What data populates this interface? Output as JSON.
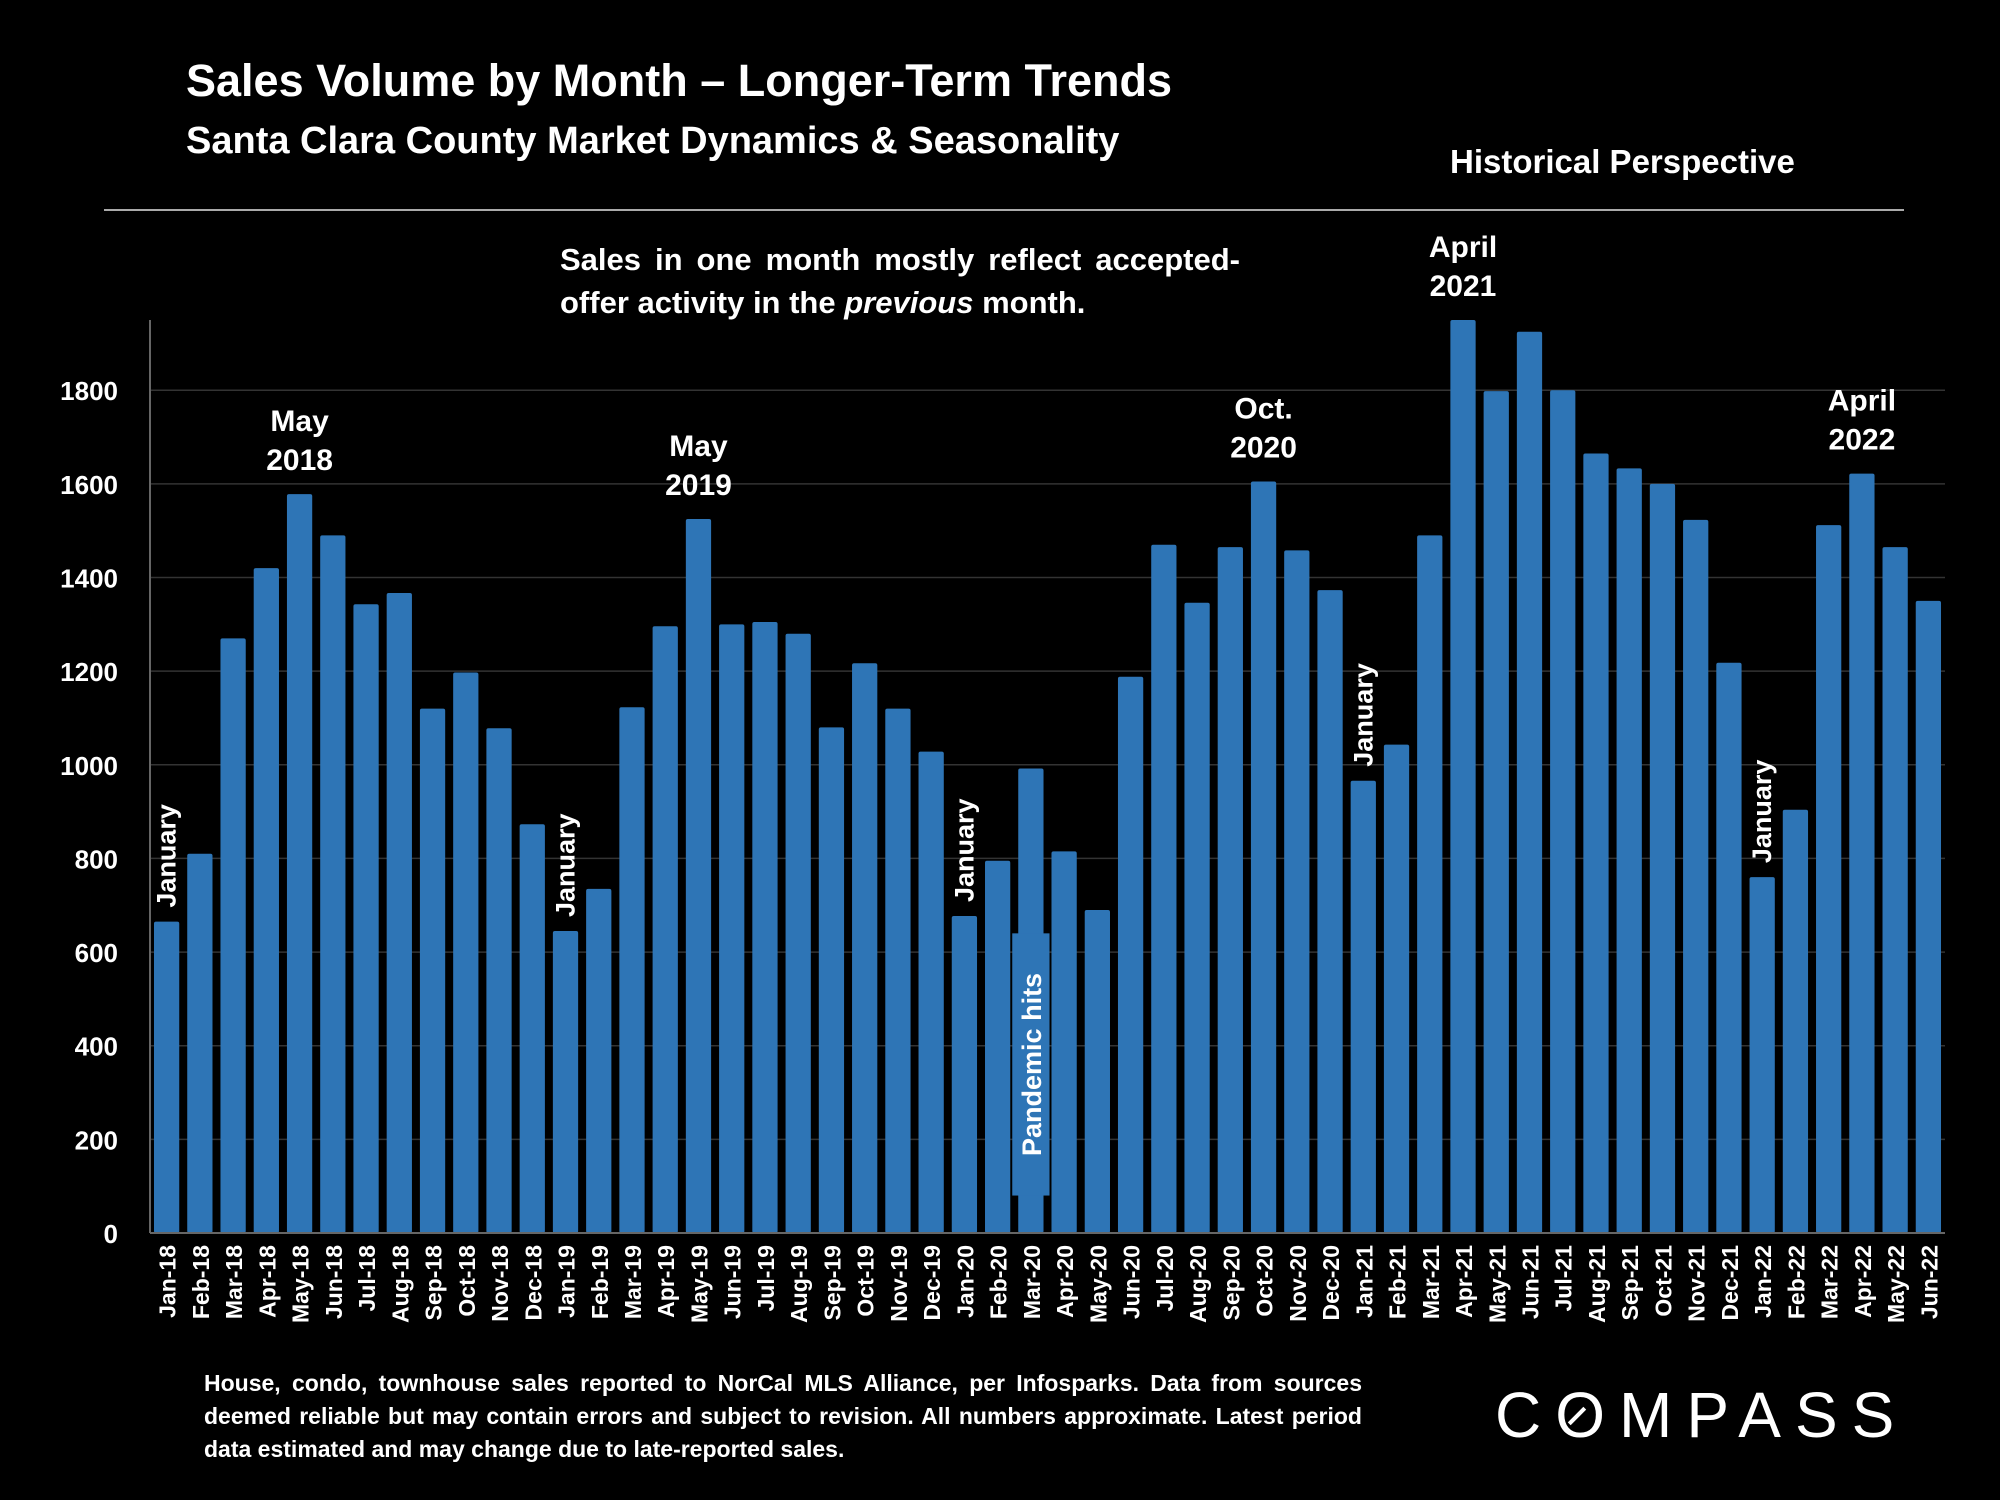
{
  "header": {
    "title": "Sales Volume by Month – Longer-Term Trends",
    "subtitle": "Santa Clara County Market Dynamics & Seasonality",
    "perspective": "Historical Perspective"
  },
  "note": {
    "part1": "Sales in one month mostly reflect accepted-offer activity in the ",
    "emphasis": "previous",
    "part2": " month."
  },
  "footnote": "House, condo, townhouse sales reported to NorCal MLS Alliance, per Infosparks. Data from sources deemed reliable but may contain errors and subject to revision. All numbers approximate. Latest period data estimated and may change due to late-reported sales.",
  "logo": {
    "before": "C",
    "o": "O",
    "after": "MPASS"
  },
  "colors": {
    "background": "#000000",
    "bar": "#2e75b6",
    "text": "#ffffff",
    "grid": "#333333"
  },
  "chart_data": {
    "type": "bar",
    "title": "Sales Volume by Month – Longer-Term Trends",
    "ylim": [
      0,
      1950
    ],
    "yticks": [
      0,
      200,
      400,
      600,
      800,
      1000,
      1200,
      1400,
      1600,
      1800
    ],
    "grid": true,
    "categories": [
      "Jan-18",
      "Feb-18",
      "Mar-18",
      "Apr-18",
      "May-18",
      "Jun-18",
      "Jul-18",
      "Aug-18",
      "Sep-18",
      "Oct-18",
      "Nov-18",
      "Dec-18",
      "Jan-19",
      "Feb-19",
      "Mar-19",
      "Apr-19",
      "May-19",
      "Jun-19",
      "Jul-19",
      "Aug-19",
      "Sep-19",
      "Oct-19",
      "Nov-19",
      "Dec-19",
      "Jan-20",
      "Feb-20",
      "Mar-20",
      "Apr-20",
      "May-20",
      "Jun-20",
      "Jul-20",
      "Aug-20",
      "Sep-20",
      "Oct-20",
      "Nov-20",
      "Dec-20",
      "Jan-21",
      "Feb-21",
      "Mar-21",
      "Apr-21",
      "May-21",
      "Jun-21",
      "Jul-21",
      "Aug-21",
      "Sep-21",
      "Oct-21",
      "Nov-21",
      "Dec-21",
      "Jan-22",
      "Feb-22",
      "Mar-22",
      "Apr-22",
      "May-22",
      "Jun-22"
    ],
    "values": [
      665,
      810,
      1270,
      1420,
      1578,
      1490,
      1343,
      1367,
      1120,
      1197,
      1078,
      873,
      645,
      735,
      1123,
      1296,
      1525,
      1300,
      1305,
      1280,
      1080,
      1217,
      1120,
      1028,
      677,
      795,
      992,
      815,
      690,
      1188,
      1470,
      1346,
      1465,
      1605,
      1458,
      1373,
      966,
      1043,
      1490,
      1950,
      1798,
      1925,
      1800,
      1665,
      1633,
      1600,
      1523,
      1218,
      760,
      904,
      1512,
      1622,
      1465,
      1350
    ],
    "annotations": [
      {
        "text": "January",
        "index": 0,
        "orientation": "vertical"
      },
      {
        "text": "May 2018",
        "index": 4,
        "orientation": "horizontal"
      },
      {
        "text": "January",
        "index": 12,
        "orientation": "vertical"
      },
      {
        "text": "May 2019",
        "index": 16,
        "orientation": "horizontal"
      },
      {
        "text": "January",
        "index": 24,
        "orientation": "vertical"
      },
      {
        "text": "Pandemic hits",
        "index": 26,
        "orientation": "vertical"
      },
      {
        "text": "Oct. 2020",
        "index": 33,
        "orientation": "horizontal"
      },
      {
        "text": "January",
        "index": 36,
        "orientation": "vertical"
      },
      {
        "text": "April 2021",
        "index": 39,
        "orientation": "horizontal"
      },
      {
        "text": "January",
        "index": 48,
        "orientation": "vertical"
      },
      {
        "text": "April 2022",
        "index": 51,
        "orientation": "horizontal"
      }
    ]
  }
}
